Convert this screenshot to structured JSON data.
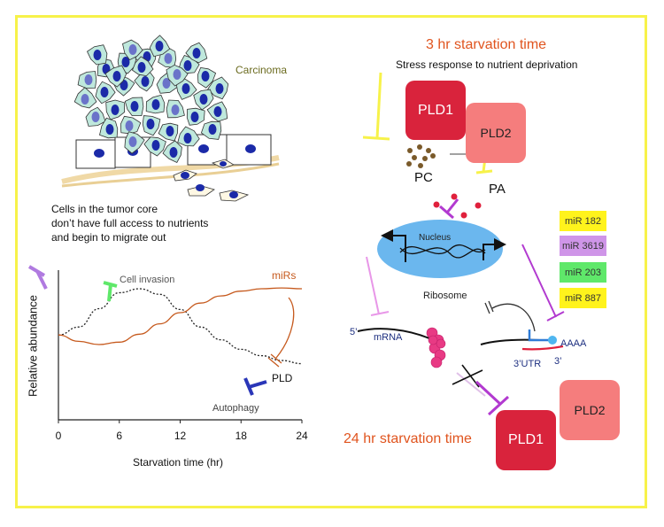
{
  "colors": {
    "frame": "#f7f24a",
    "orange_text": "#e0541e",
    "pld1": "#d9233c",
    "pld2": "#f57d7d",
    "nucleus": "#6bb7ee",
    "carcinoma_label": "#6b6b1f"
  },
  "tumor": {
    "label": "Carcinoma",
    "caption_line1": "Cells in the tumor core",
    "caption_line2": "don’t have full access to nutrients",
    "caption_line3": "and begin to migrate out"
  },
  "chart": {
    "ylabel": "Relative abundance",
    "xlabel": "Starvation time (hr)",
    "label_cell_invasion": "Cell invasion",
    "label_mirs": "miRs",
    "label_pld": "PLD",
    "label_autophagy": "Autophagy"
  },
  "chart_data": {
    "type": "line",
    "xlabel": "Starvation time (hr)",
    "ylabel": "Relative abundance",
    "x_ticks": [
      "0",
      "6",
      "12",
      "18",
      "24"
    ],
    "xlim": [
      0,
      24
    ],
    "series": [
      {
        "name": "Cell invasion",
        "x": [
          0,
          2,
          4,
          6,
          8,
          10,
          12,
          14,
          16,
          18,
          20,
          22,
          24
        ],
        "y": [
          0.42,
          0.52,
          0.75,
          0.95,
          1.0,
          0.93,
          0.74,
          0.52,
          0.36,
          0.24,
          0.16,
          0.1,
          0.06
        ]
      },
      {
        "name": "miRs",
        "x": [
          0,
          2,
          4,
          6,
          8,
          10,
          12,
          14,
          16,
          18,
          20,
          22,
          24
        ],
        "y": [
          0.42,
          0.34,
          0.3,
          0.33,
          0.43,
          0.56,
          0.7,
          0.82,
          0.91,
          0.97,
          1.0,
          1.01,
          1.0
        ]
      }
    ]
  },
  "pathway": {
    "title_3hr": "3 hr starvation time",
    "subtitle_3hr": "Stress response to nutrient deprivation",
    "pld1": "PLD1",
    "pld2": "PLD2",
    "pc": "PC",
    "pa": "PA",
    "nucleus": "Nucleus",
    "ribosome": "Ribosome",
    "five_prime": "5’",
    "mrna": "mRNA",
    "three_utr": "3’UTR",
    "three_prime": "3’",
    "polya": "AAAA",
    "title_24hr": "24 hr starvation time",
    "pld1_bottom": "PLD1",
    "pld2_bottom": "PLD2"
  },
  "mirs": [
    {
      "label": "miR 182",
      "color": "#fff31c"
    },
    {
      "label": "miR 3619",
      "color": "#cf95e8"
    },
    {
      "label": "miR 203",
      "color": "#5fe86a"
    },
    {
      "label": "miR 887",
      "color": "#fff31c"
    }
  ]
}
